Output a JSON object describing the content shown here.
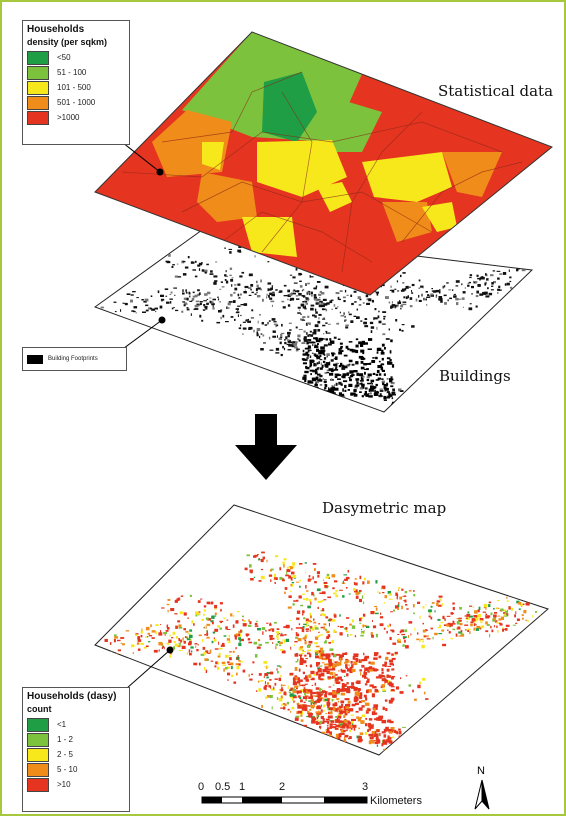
{
  "labels": {
    "statistical": "Statistical data",
    "buildings": "Buildings",
    "dasymetric": "Dasymetric map"
  },
  "legend_density": {
    "title1": "Households",
    "title2": "density (per sqkm)",
    "items": [
      {
        "label": "<50",
        "color": "#1f9e45"
      },
      {
        "label": "51 - 100",
        "color": "#7cc23c"
      },
      {
        "label": "101 - 500",
        "color": "#f7e81c"
      },
      {
        "label": "501 - 1000",
        "color": "#f08c19"
      },
      {
        "label": ">1000",
        "color": "#e5341f"
      }
    ]
  },
  "legend_buildings": {
    "label": "Building Footprints",
    "color": "#000000"
  },
  "legend_dasy": {
    "title1": "Households (dasy)",
    "title2": "count",
    "items": [
      {
        "label": "<1",
        "color": "#1f9e45"
      },
      {
        "label": "1 - 2",
        "color": "#7cc23c"
      },
      {
        "label": "2 - 5",
        "color": "#f7e81c"
      },
      {
        "label": "5 - 10",
        "color": "#f08c19"
      },
      {
        "label": ">10",
        "color": "#e5341f"
      }
    ]
  },
  "scale_bar": {
    "ticks": [
      "0",
      "0.5",
      "1",
      "2",
      "3"
    ],
    "unit": "Kilometers"
  },
  "north": {
    "label": "N"
  }
}
